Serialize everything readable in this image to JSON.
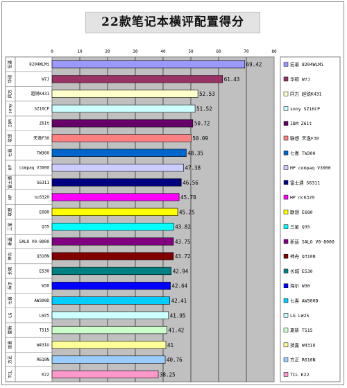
{
  "chart_data": {
    "type": "bar",
    "orientation": "horizontal",
    "title": "22款笔记本横评配置得分",
    "xlim": [
      0,
      80
    ],
    "xticks": [
      "0",
      "10",
      "20",
      "30",
      "40",
      "50",
      "60",
      "70",
      "80"
    ],
    "grid": "vertical",
    "legend_position": "right",
    "categories": [
      {
        "brand": "宏基",
        "model": "8204WLMi",
        "value": 69.42,
        "value_label": "69.42",
        "legend": "宏基 8204WLMi",
        "color": "#9999ff"
      },
      {
        "brand": "华硕",
        "model": "W7J",
        "value": 61.43,
        "value_label": "61.43",
        "legend": "华硕 W7J",
        "color": "#993366"
      },
      {
        "brand": "同方",
        "model": "超锐K431",
        "value": 52.53,
        "value_label": "52.53",
        "legend": "同方 超锐K431",
        "color": "#ffffcc"
      },
      {
        "brand": "sony",
        "model": "SZ16CP",
        "value": 51.52,
        "value_label": "51.52",
        "legend": "sony SZ16CP",
        "color": "#ccffff"
      },
      {
        "brand": "IBM",
        "model": "Z61t",
        "value": 50.72,
        "value_label": "50.72",
        "legend": "IBM Z61t",
        "color": "#660066"
      },
      {
        "brand": "联想",
        "model": "天逸F30",
        "value": 50.09,
        "value_label": "50.09",
        "legend": "联想 天逸F30",
        "color": "#ff8080"
      },
      {
        "brand": "七喜",
        "model": "TW300",
        "value": 48.35,
        "value_label": "48.35",
        "legend": "七喜 TW300",
        "color": "#0066cc"
      },
      {
        "brand": "HP",
        "model": "compaq V3000",
        "value": 47.38,
        "value_label": "47.38",
        "legend": "HP compaq V3000",
        "color": "#ccccff"
      },
      {
        "brand": "富士通",
        "model": "S6311",
        "value": 46.56,
        "value_label": "46.56",
        "legend": "富士通 S6311",
        "color": "#000080"
      },
      {
        "brand": "HP",
        "model": "nc6320",
        "value": 45.78,
        "value_label": "45.78",
        "legend": "HP nc6320",
        "color": "#ff00ff"
      },
      {
        "brand": "联想",
        "model": "E680",
        "value": 45.25,
        "value_label": "45.25",
        "legend": "联想 E680",
        "color": "#ffff00"
      },
      {
        "brand": "三星",
        "model": "Q35",
        "value": 43.82,
        "value_label": "43.82",
        "legend": "三星 Q35",
        "color": "#00ffff"
      },
      {
        "brand": "新蓝",
        "model": "SALO V0-8000",
        "value": 43.75,
        "value_label": "43.75",
        "legend": "新蓝 SALO V0-8000",
        "color": "#800080"
      },
      {
        "brand": "神舟",
        "model": "Q310N",
        "value": 43.72,
        "value_label": "43.72",
        "legend": "神舟 Q310N",
        "color": "#800000"
      },
      {
        "brand": "长城",
        "model": "E530",
        "value": 42.94,
        "value_label": "42.94",
        "legend": "长城 E530",
        "color": "#008080"
      },
      {
        "brand": "海尔",
        "model": "W30",
        "value": 42.64,
        "value_label": "42.64",
        "legend": "海尔 W30",
        "color": "#0000ff"
      },
      {
        "brand": "七喜",
        "model": "AW300D",
        "value": 42.41,
        "value_label": "42.41",
        "legend": "七喜 AW300D",
        "color": "#00ccff"
      },
      {
        "brand": "LG",
        "model": "LW25",
        "value": 41.95,
        "value_label": "41.95",
        "legend": "LG LW25",
        "color": "#ccffff"
      },
      {
        "brand": "夏新",
        "model": "T515",
        "value": 41.42,
        "value_label": "41.42",
        "legend": "夏新 T515",
        "color": "#ccffcc"
      },
      {
        "brand": "技嘉",
        "model": "W431U",
        "value": 41.0,
        "value_label": "41",
        "legend": "技嘉 W431U",
        "color": "#ffff99"
      },
      {
        "brand": "方正",
        "model": "R610N",
        "value": 40.76,
        "value_label": "40.76",
        "legend": "方正 R610N",
        "color": "#99ccff"
      },
      {
        "brand": "TCL",
        "model": "K22",
        "value": 38.25,
        "value_label": "38.25",
        "legend": "TCL K22",
        "color": "#ff99cc"
      }
    ]
  }
}
